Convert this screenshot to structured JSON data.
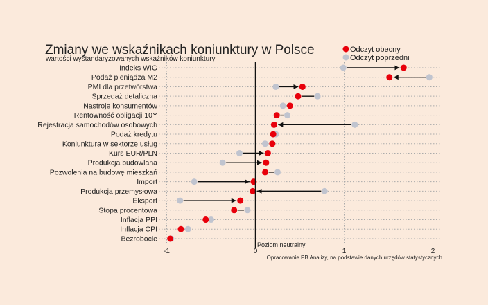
{
  "chart_data": {
    "type": "dot-arrow",
    "title": "Zmiany we wskaźnikach koniunktury w Polsce",
    "subtitle": "wartości wystandaryzowanych wskaźników koniunktury",
    "legend": {
      "current": "Odczyt obecny",
      "previous": "Odczyt poprzedni",
      "placement": "top-right"
    },
    "colors": {
      "current": "#e8000b",
      "previous": "#c0c4cf",
      "arrow": "#111111",
      "background": "#fbeadc",
      "grid": "#aaaaaa"
    },
    "xlim": [
      -1.1,
      2.1
    ],
    "xticks": [
      "-1",
      "0",
      "1",
      "2"
    ],
    "xtick_values": [
      -1,
      0,
      1,
      2
    ],
    "zero_label": "Poziom neutralny",
    "source": "Opracowanie PB Analizy, na podstawie danych urzędów statystycznych",
    "grid": true,
    "rows": [
      {
        "label": "Indeks WIG",
        "current": 1.67,
        "previous": 0.99
      },
      {
        "label": "Podaż pieniądza M2",
        "current": 1.51,
        "previous": 1.96
      },
      {
        "label": "PMI dla przetwórstwa",
        "current": 0.53,
        "previous": 0.23
      },
      {
        "label": "Sprzedaż detaliczna",
        "current": 0.48,
        "previous": 0.7
      },
      {
        "label": "Nastroje konsumentów",
        "current": 0.39,
        "previous": 0.31
      },
      {
        "label": "Rentowność obligacji 10Y",
        "current": 0.24,
        "previous": 0.36
      },
      {
        "label": "Rejestracja samochodów osobowych",
        "current": 0.21,
        "previous": 1.12
      },
      {
        "label": "Podaż kredytu",
        "current": 0.2,
        "previous": 0.23
      },
      {
        "label": "Koniunktura w sektorze usług",
        "current": 0.19,
        "previous": 0.11
      },
      {
        "label": "Kurs EUR/PLN",
        "current": 0.14,
        "previous": -0.18
      },
      {
        "label": "Produkcja budowlana",
        "current": 0.12,
        "previous": -0.37
      },
      {
        "label": "Pozwolenia na budowę mieszkań",
        "current": 0.11,
        "previous": 0.25
      },
      {
        "label": "Import",
        "current": -0.02,
        "previous": -0.69
      },
      {
        "label": "Produkcja przemysłowa",
        "current": -0.03,
        "previous": 0.78
      },
      {
        "label": "Eksport",
        "current": -0.17,
        "previous": -0.85
      },
      {
        "label": "Stopa procentowa",
        "current": -0.24,
        "previous": -0.09
      },
      {
        "label": "Inflacja PPI",
        "current": -0.56,
        "previous": -0.5
      },
      {
        "label": "Inflacja CPI",
        "current": -0.84,
        "previous": -0.76
      },
      {
        "label": "Bezrobocie",
        "current": -0.96,
        "previous": -0.95
      }
    ]
  }
}
